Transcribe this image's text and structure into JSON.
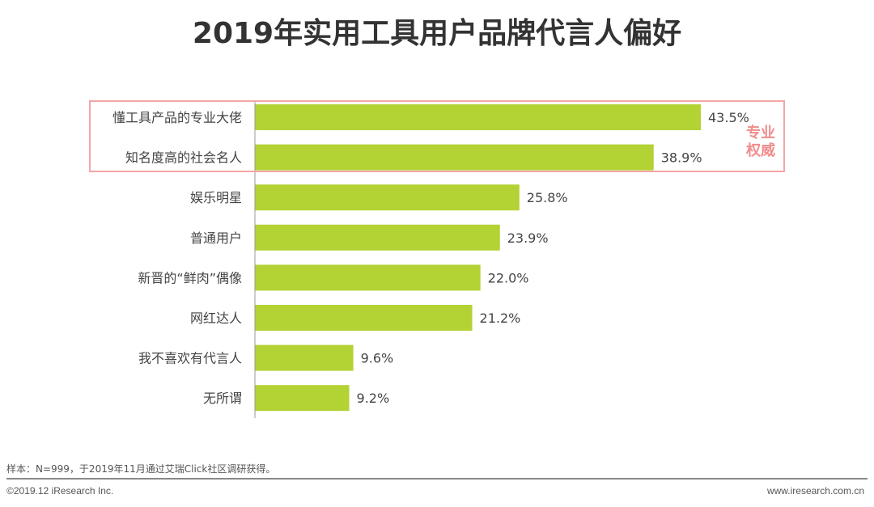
{
  "chart_data": {
    "type": "bar",
    "orientation": "horizontal",
    "title": "2019年实用工具用户品牌代言人偏好",
    "categories": [
      "懂工具产品的专业大佬",
      "知名度高的社会名人",
      "娱乐明星",
      "普通用户",
      "新晋的“鲜肉”偶像",
      "网红达人",
      "我不喜欢有代言人",
      "无所谓"
    ],
    "values": [
      43.5,
      38.9,
      25.8,
      23.9,
      22.0,
      21.2,
      9.6,
      9.2
    ],
    "value_labels": [
      "43.5%",
      "38.9%",
      "25.8%",
      "23.9%",
      "22.0%",
      "21.2%",
      "9.6%",
      "9.2%"
    ],
    "xlim": [
      0,
      50
    ],
    "grid": false,
    "bar_color": "#b3d234",
    "annotation": {
      "text_line1": "专业",
      "text_line2": "权威",
      "color": "#f08c8c",
      "highlights": [
        "懂工具产品的专业大佬",
        "知名度高的社会名人"
      ]
    }
  },
  "footer": {
    "note": "样本：N=999，于2019年11月通过艾瑞Click社区调研获得。",
    "copyright": "©2019.12 iResearch Inc.",
    "website": "www.iresearch.com.cn"
  }
}
